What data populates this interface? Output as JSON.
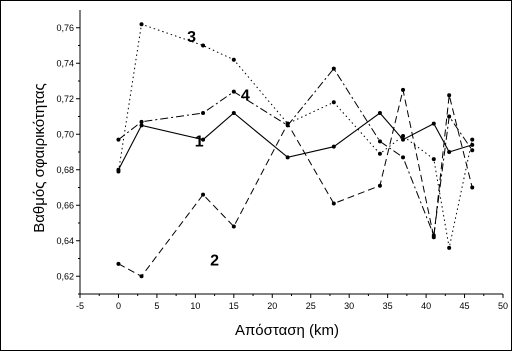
{
  "chart_data": {
    "type": "line",
    "title": "",
    "xlabel": "Απόσταση (km)",
    "ylabel": "Βαθμός σφαιρικότητας",
    "xlim": [
      -5,
      50
    ],
    "ylim": [
      0.61,
      0.77
    ],
    "xticks": [
      -5,
      0,
      5,
      10,
      15,
      20,
      25,
      30,
      35,
      40,
      45,
      50
    ],
    "xtick_labels": [
      "-5",
      "0",
      "5",
      "10",
      "15",
      "20",
      "25",
      "30",
      "35",
      "40",
      "45",
      "50"
    ],
    "yticks": [
      0.62,
      0.64,
      0.66,
      0.68,
      0.7,
      0.72,
      0.74,
      0.76
    ],
    "ytick_labels": [
      "0,62",
      "0,64",
      "0,66",
      "0,68",
      "0,70",
      "0,72",
      "0,74",
      "0,76"
    ],
    "grid": false,
    "series": [
      {
        "name": "1",
        "style": "solid",
        "x": [
          0,
          3,
          11,
          15,
          22,
          28,
          34,
          37,
          41,
          43,
          46
        ],
        "y": [
          0.68,
          0.705,
          0.697,
          0.712,
          0.687,
          0.693,
          0.712,
          0.697,
          0.706,
          0.69,
          0.694
        ]
      },
      {
        "name": "2",
        "style": "dashed",
        "x": [
          0,
          3,
          11,
          15,
          22,
          28,
          34,
          37,
          41,
          43,
          46
        ],
        "y": [
          0.627,
          0.62,
          0.666,
          0.648,
          0.706,
          0.661,
          0.671,
          0.725,
          0.642,
          0.722,
          0.67
        ]
      },
      {
        "name": "3",
        "style": "dotted",
        "x": [
          0,
          3,
          11,
          15,
          22,
          28,
          34,
          37,
          41,
          43,
          46
        ],
        "y": [
          0.679,
          0.762,
          0.75,
          0.742,
          0.706,
          0.718,
          0.689,
          0.699,
          0.686,
          0.636,
          0.697
        ]
      },
      {
        "name": "4",
        "style": "dashdot",
        "x": [
          0,
          3,
          11,
          15,
          22,
          28,
          34,
          37,
          41,
          43,
          46
        ],
        "y": [
          0.697,
          0.707,
          0.712,
          0.724,
          0.705,
          0.737,
          0.696,
          0.687,
          0.643,
          0.71,
          0.691
        ]
      }
    ],
    "series_annotations": [
      {
        "text": "1",
        "x": 10.5,
        "y": 0.693
      },
      {
        "text": "2",
        "x": 12.5,
        "y": 0.626
      },
      {
        "text": "3",
        "x": 9.5,
        "y": 0.752
      },
      {
        "text": "4",
        "x": 16.5,
        "y": 0.719
      }
    ]
  }
}
